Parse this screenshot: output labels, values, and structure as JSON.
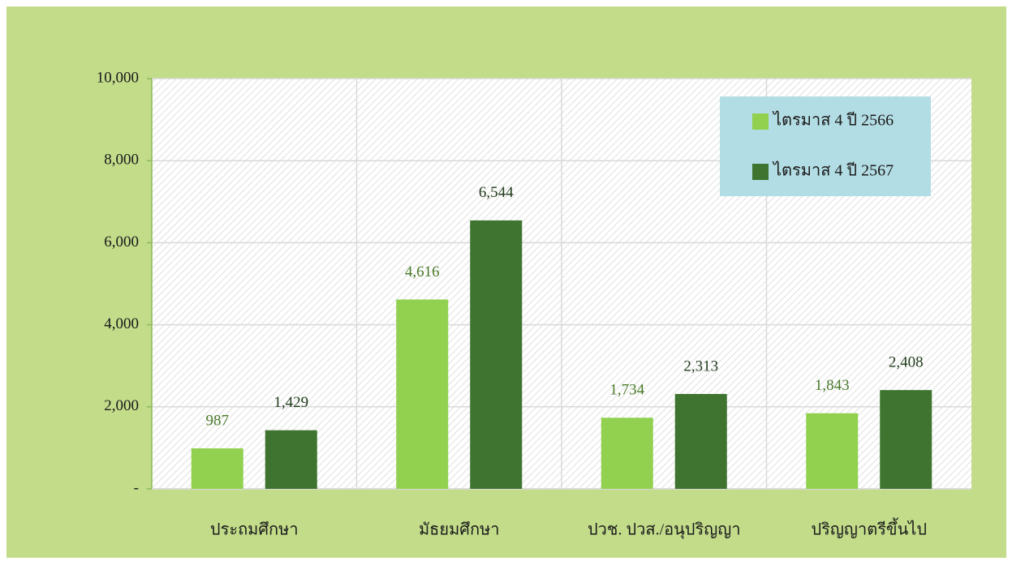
{
  "chart_data": {
    "type": "bar",
    "categories": [
      "ประถมศึกษา",
      "มัธยมศึกษา",
      "ปวช. ปวส./อนุปริญญา",
      "ปริญญาตรีขึ้นไป"
    ],
    "series": [
      {
        "name": "ไตรมาส 4 ปี 2566",
        "color": "#92d050",
        "values": [
          987,
          4616,
          1734,
          1843
        ],
        "value_labels": [
          "987",
          "4,616",
          "1,734",
          "1,843"
        ]
      },
      {
        "name": "ไตรมาส 4 ปี 2567",
        "color": "#3e7430",
        "values": [
          1429,
          6544,
          2313,
          2408
        ],
        "value_labels": [
          "1,429",
          "6,544",
          "2,313",
          "2,408"
        ]
      }
    ],
    "ylim": [
      0,
      10000
    ],
    "yticks": [
      {
        "value": 0,
        "label": "-"
      },
      {
        "value": 2000,
        "label": "2,000"
      },
      {
        "value": 4000,
        "label": "4,000"
      },
      {
        "value": 6000,
        "label": "6,000"
      },
      {
        "value": 8000,
        "label": "8,000"
      },
      {
        "value": 10000,
        "label": "10,000"
      }
    ],
    "grid": true,
    "legend": "upper right"
  }
}
